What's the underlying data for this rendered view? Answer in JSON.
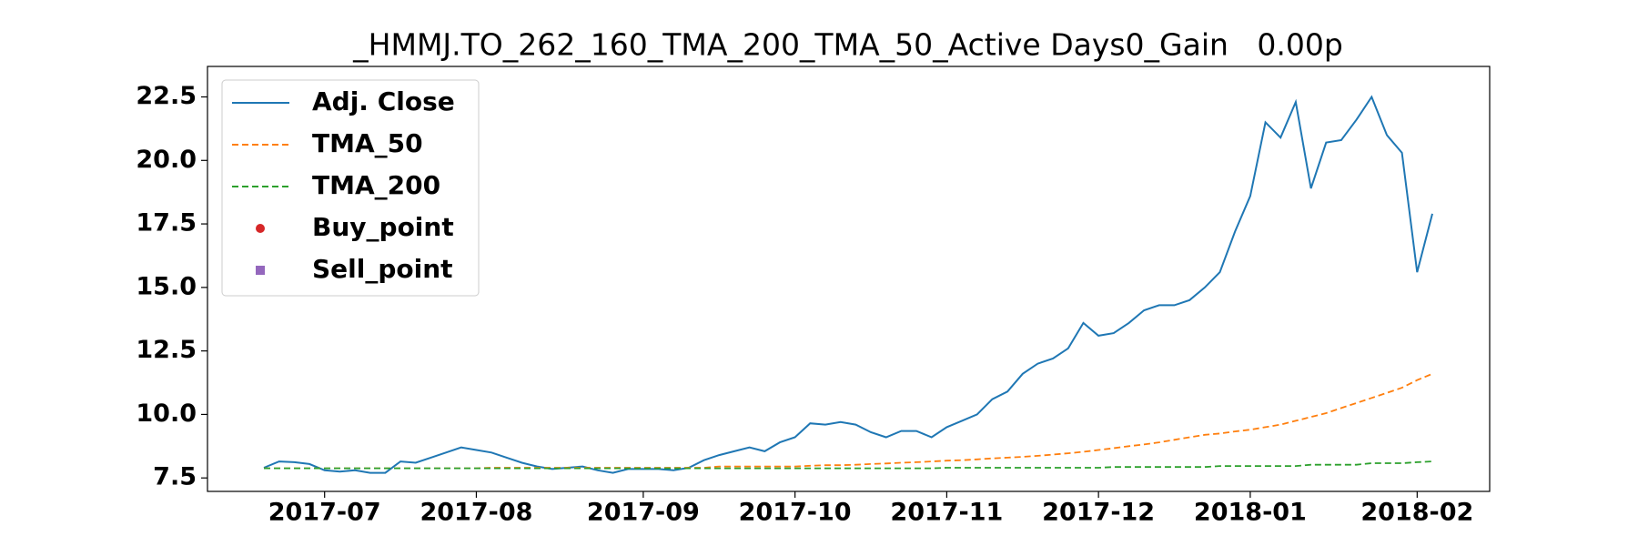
{
  "chart_data": {
    "type": "line",
    "title": "_HMMJ.TO_262_160_TMA_200_TMA_50_Active Days0_Gain   0.00p",
    "categories": [
      null,
      null,
      null,
      null,
      "2017-07",
      null,
      null,
      null,
      null,
      null,
      null,
      null,
      null,
      null,
      "2017-08",
      null,
      null,
      null,
      null,
      null,
      null,
      null,
      null,
      null,
      null,
      "2017-09",
      null,
      null,
      null,
      null,
      null,
      null,
      null,
      null,
      null,
      "2017-10",
      null,
      null,
      null,
      null,
      null,
      null,
      null,
      null,
      null,
      "2017-11",
      null,
      null,
      null,
      null,
      null,
      null,
      null,
      null,
      null,
      "2017-12",
      null,
      null,
      null,
      null,
      null,
      null,
      null,
      null,
      null,
      "2018-01",
      null,
      null,
      null,
      null,
      null,
      null,
      null,
      null,
      null,
      null,
      "2018-02",
      null
    ],
    "series": [
      {
        "name": "Adj. Close",
        "color": "#1f77b4",
        "style": "solid",
        "values": [
          7.9,
          8.15,
          8.12,
          8.05,
          7.8,
          7.75,
          7.8,
          7.7,
          7.7,
          8.15,
          8.1,
          8.3,
          8.5,
          8.7,
          8.6,
          8.5,
          8.3,
          8.1,
          7.95,
          7.85,
          7.9,
          7.95,
          7.8,
          7.7,
          7.85,
          7.85,
          7.85,
          7.8,
          7.9,
          8.2,
          8.4,
          8.55,
          8.7,
          8.55,
          8.9,
          9.1,
          9.65,
          9.6,
          9.7,
          9.6,
          9.3,
          9.1,
          9.35,
          9.35,
          9.1,
          9.5,
          9.75,
          10.0,
          10.6,
          10.9,
          11.6,
          12.0,
          12.2,
          12.6,
          13.6,
          13.1,
          13.2,
          13.6,
          14.1,
          14.3,
          14.3,
          14.5,
          15.0,
          15.6,
          17.2,
          18.6,
          21.5,
          20.9,
          22.3,
          18.9,
          20.7,
          20.8,
          21.6,
          22.5,
          21.0,
          20.3,
          15.6,
          17.9
        ]
      },
      {
        "name": "TMA_50",
        "color": "#ff7f0e",
        "style": "dashed",
        "values": [
          7.88,
          7.88,
          7.88,
          7.88,
          7.88,
          7.88,
          7.88,
          7.88,
          7.88,
          7.88,
          7.88,
          7.88,
          7.88,
          7.88,
          7.88,
          7.9,
          7.9,
          7.9,
          7.9,
          7.9,
          7.9,
          7.9,
          7.9,
          7.9,
          7.9,
          7.9,
          7.9,
          7.9,
          7.9,
          7.9,
          7.95,
          7.95,
          7.95,
          7.95,
          7.95,
          7.95,
          7.98,
          8.0,
          8.0,
          8.02,
          8.05,
          8.07,
          8.1,
          8.12,
          8.15,
          8.18,
          8.2,
          8.23,
          8.27,
          8.3,
          8.33,
          8.37,
          8.42,
          8.47,
          8.53,
          8.6,
          8.67,
          8.75,
          8.82,
          8.9,
          9.0,
          9.1,
          9.2,
          9.25,
          9.33,
          9.4,
          9.5,
          9.6,
          9.75,
          9.9,
          10.05,
          10.25,
          10.45,
          10.65,
          10.85,
          11.05,
          11.35,
          11.6
        ]
      },
      {
        "name": "TMA_200",
        "color": "#2ca02c",
        "style": "dashed",
        "values": [
          7.88,
          7.88,
          7.88,
          7.88,
          7.88,
          7.88,
          7.88,
          7.88,
          7.88,
          7.88,
          7.88,
          7.88,
          7.88,
          7.88,
          7.88,
          7.88,
          7.88,
          7.88,
          7.88,
          7.88,
          7.88,
          7.88,
          7.88,
          7.88,
          7.88,
          7.88,
          7.88,
          7.88,
          7.88,
          7.88,
          7.88,
          7.88,
          7.88,
          7.88,
          7.88,
          7.88,
          7.88,
          7.88,
          7.88,
          7.88,
          7.88,
          7.88,
          7.88,
          7.88,
          7.88,
          7.9,
          7.9,
          7.9,
          7.9,
          7.9,
          7.9,
          7.9,
          7.9,
          7.9,
          7.9,
          7.9,
          7.93,
          7.93,
          7.93,
          7.93,
          7.93,
          7.93,
          7.93,
          7.97,
          7.97,
          7.97,
          7.97,
          7.97,
          7.97,
          8.02,
          8.02,
          8.02,
          8.02,
          8.08,
          8.08,
          8.08,
          8.12,
          8.15
        ]
      },
      {
        "name": "Buy_point",
        "color": "#d62728",
        "style": "circle",
        "values": [
          null,
          null,
          null,
          null,
          null,
          null,
          null,
          null,
          null,
          null,
          null,
          null,
          null,
          null,
          null,
          null,
          null,
          null,
          null,
          null,
          null,
          null,
          null,
          null,
          null,
          null,
          null,
          null,
          null,
          null,
          null,
          null,
          null,
          null,
          null,
          null,
          null,
          null,
          null,
          null,
          null,
          null,
          null,
          null,
          null,
          null,
          null,
          null,
          null,
          null,
          null,
          null,
          null,
          null,
          null,
          null,
          null,
          null,
          null,
          null,
          null,
          null,
          null,
          null,
          null,
          null,
          null,
          null,
          null,
          null,
          null,
          null,
          null,
          null,
          null,
          null,
          null,
          null
        ]
      },
      {
        "name": "Sell_point",
        "color": "#9467bd",
        "style": "square",
        "values": [
          null,
          null,
          null,
          null,
          null,
          null,
          null,
          null,
          null,
          null,
          null,
          null,
          null,
          null,
          null,
          null,
          null,
          null,
          null,
          null,
          null,
          null,
          null,
          null,
          null,
          null,
          null,
          null,
          null,
          null,
          null,
          null,
          null,
          null,
          null,
          null,
          null,
          null,
          null,
          null,
          null,
          null,
          null,
          null,
          null,
          null,
          null,
          null,
          null,
          null,
          null,
          null,
          null,
          null,
          null,
          null,
          null,
          null,
          null,
          null,
          null,
          null,
          null,
          null,
          null,
          null,
          null,
          null,
          null,
          null,
          null,
          null,
          null,
          null,
          null,
          null,
          null,
          null
        ]
      }
    ],
    "ylim": [
      6.97,
      23.7
    ],
    "yticks": [
      7.5,
      {
        "value": 10,
        "label": "10.0"
      },
      12.5,
      {
        "value": 15,
        "label": "15.0"
      },
      17.5,
      {
        "value": 20,
        "label": "20.0"
      },
      22.5
    ],
    "legend": "upper left",
    "grid": false
  }
}
